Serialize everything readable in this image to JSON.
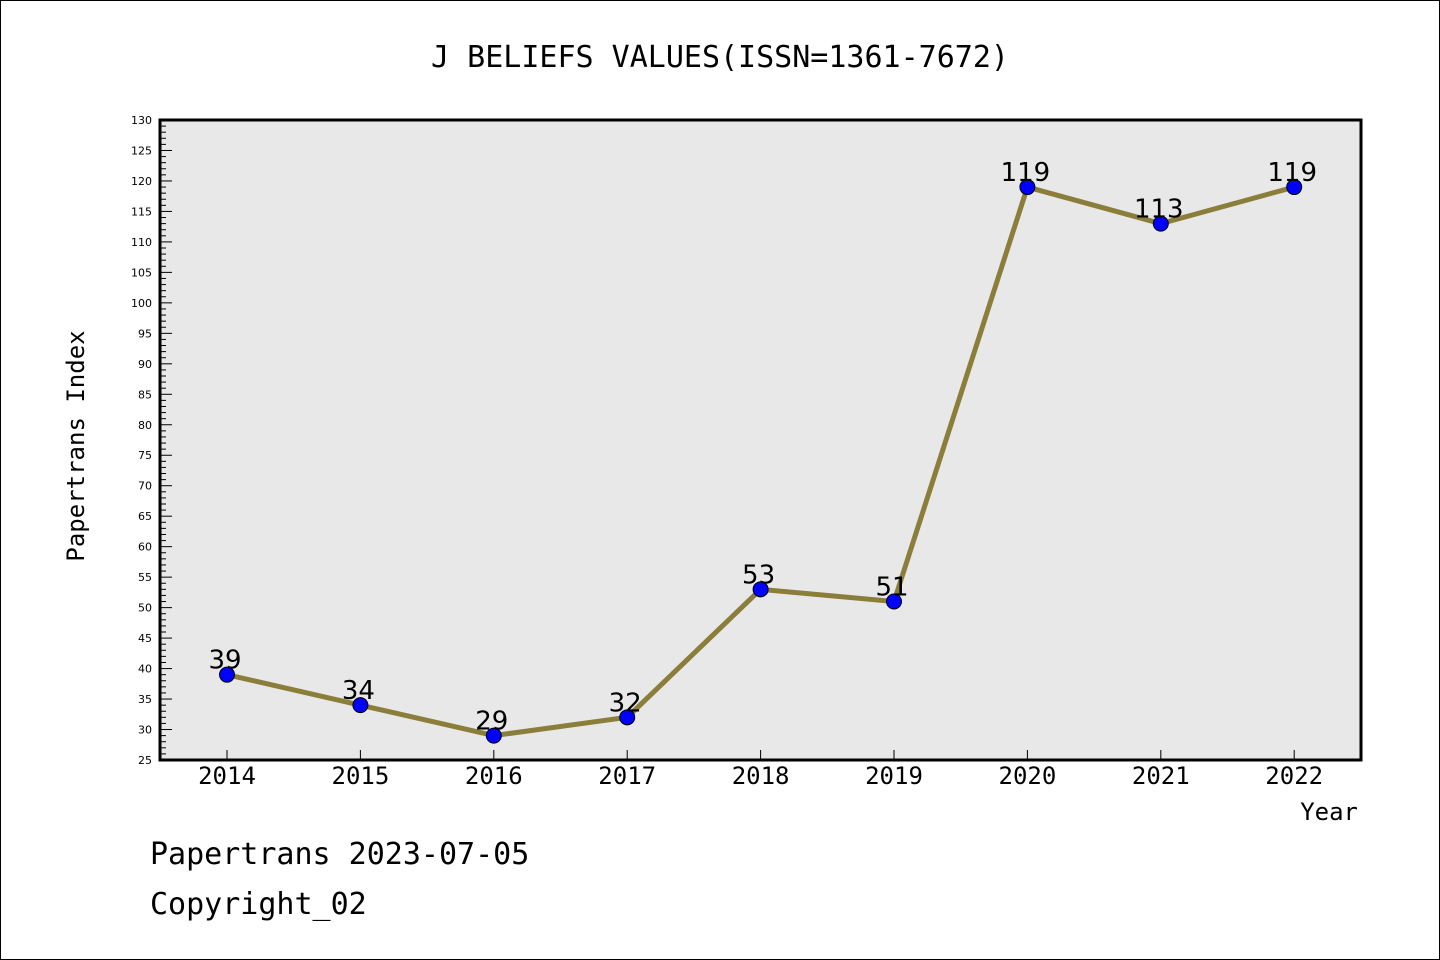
{
  "chart_data": {
    "type": "line",
    "title": "J BELIEFS VALUES(ISSN=1361-7672)",
    "xlabel": "Year",
    "ylabel": "Papertrans Index",
    "categories": [
      "2014",
      "2015",
      "2016",
      "2017",
      "2018",
      "2019",
      "2020",
      "2021",
      "2022"
    ],
    "values": [
      39,
      34,
      29,
      32,
      53,
      51,
      119,
      113,
      119
    ],
    "data_labels": [
      "39",
      "34",
      "29",
      "32",
      "53",
      "51",
      "119",
      "113",
      "119"
    ],
    "ylim": [
      25,
      130
    ],
    "y_ticks": [
      "25",
      "30",
      "35",
      "40",
      "45",
      "50",
      "55",
      "60",
      "65",
      "70",
      "75",
      "80",
      "85",
      "90",
      "95",
      "100",
      "105",
      "110",
      "115",
      "120",
      "125",
      "130"
    ],
    "grid": false,
    "legend": "none",
    "colors": {
      "line": "#8b7d3a",
      "marker": "#0000ff",
      "plot_background": "#e8e8e8"
    }
  },
  "footer": {
    "line1": "Papertrans 2023-07-05",
    "line2": "Copyright_02"
  }
}
